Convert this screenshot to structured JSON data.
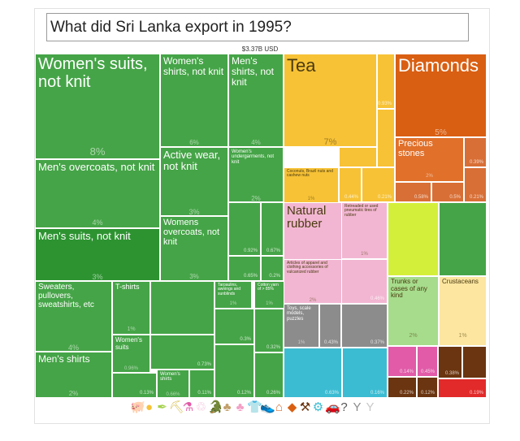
{
  "title": "What did Sri Lanka export in 1995?",
  "total": "$3.37B USD",
  "chart_data": {
    "type": "treemap",
    "title": "What did Sri Lanka export in 1995?",
    "total_label": "$3.37B USD",
    "cells": [
      {
        "label": "Women's suits, not knit",
        "pct": "8%",
        "share": 8,
        "sector": "Textiles",
        "color": "#45a447"
      },
      {
        "label": "Women's shirts, not knit",
        "pct": "6%",
        "share": 6,
        "sector": "Textiles",
        "color": "#45a447"
      },
      {
        "label": "Men's shirts, not knit",
        "pct": "4%",
        "share": 4,
        "sector": "Textiles",
        "color": "#45a447"
      },
      {
        "label": "Men's overcoats, not knit",
        "pct": "4%",
        "share": 4,
        "sector": "Textiles",
        "color": "#45a447"
      },
      {
        "label": "Men's suits, not knit",
        "pct": "3%",
        "share": 3,
        "sector": "Textiles",
        "color": "#2d9331"
      },
      {
        "label": "Active wear, not knit",
        "pct": "3%",
        "share": 3,
        "sector": "Textiles",
        "color": "#45a447"
      },
      {
        "label": "Women's undergarments, not knit",
        "pct": "2%",
        "share": 2,
        "sector": "Textiles",
        "color": "#45a447"
      },
      {
        "label": "Womens overcoats, not knit",
        "pct": "3%",
        "share": 3,
        "sector": "Textiles",
        "color": "#45a447"
      },
      {
        "label": "Sweaters, pullovers, sweatshirts, etc",
        "pct": "4%",
        "share": 4,
        "sector": "Textiles",
        "color": "#45a447"
      },
      {
        "label": "Men's shirts",
        "pct": "2%",
        "share": 2,
        "sector": "Textiles",
        "color": "#45a447"
      },
      {
        "label": "T-shirts",
        "pct": "1%",
        "share": 1,
        "sector": "Textiles",
        "color": "#45a447"
      },
      {
        "label": "Women's suits",
        "pct": "0.96%",
        "share": 0.96,
        "sector": "Textiles",
        "color": "#45a447"
      },
      {
        "label": "Women's shirts",
        "pct": "0.66%",
        "share": 0.66,
        "sector": "Textiles",
        "color": "#45a447"
      },
      {
        "label": "Tarpaulins, awnings and sunblinds",
        "pct": "1%",
        "share": 1,
        "sector": "Textiles",
        "color": "#45a447"
      },
      {
        "label": "Cotton yarn of > 85%",
        "pct": "1%",
        "share": 1,
        "sector": "Textiles",
        "color": "#45a447"
      },
      {
        "label": "Tea",
        "pct": "7%",
        "share": 7,
        "sector": "Vegetable Products",
        "color": "#f7c236"
      },
      {
        "label": "Coconuts, Brazil nuts and cashew nuts",
        "pct": "1%",
        "share": 1,
        "sector": "Vegetable Products",
        "color": "#f7c236"
      },
      {
        "label": "Diamonds",
        "pct": "5%",
        "share": 5,
        "sector": "Precious Metals",
        "color": "#d95f12"
      },
      {
        "label": "Precious stones",
        "pct": "2%",
        "share": 2,
        "sector": "Precious Metals",
        "color": "#e0702a"
      },
      {
        "label": "Natural rubber",
        "pct": "2%",
        "share": 2,
        "sector": "Plastics and Rubbers",
        "color": "#f2b6d2"
      },
      {
        "label": "Retreaded or used pneumatic tires of rubber",
        "pct": "1%",
        "share": 1,
        "sector": "Plastics and Rubbers",
        "color": "#f2b6d2"
      },
      {
        "label": "Articles of apparel and clothing accessories of vulcanized rubber",
        "pct": "2%",
        "share": 2,
        "sector": "Plastics and Rubbers",
        "color": "#f2b6d2"
      },
      {
        "label": "Toys, scale models, puzzles",
        "pct": "1%",
        "share": 1,
        "sector": "Miscellaneous",
        "color": "#8c8c8c"
      },
      {
        "label": "Trunks or cases of any kind",
        "pct": "2%",
        "share": 2,
        "sector": "Animal Hides",
        "color": "#a6dc8c"
      },
      {
        "label": "Crustaceans",
        "pct": "1%",
        "share": 1,
        "sector": "Animal Products",
        "color": "#fce6a0"
      }
    ],
    "small_value_labels": [
      "0.93%",
      "0.44%",
      "0.21%",
      "0.58%",
      "0.5%",
      "0.39%",
      "0.21%",
      "0.92%",
      "0.67%",
      "0.65%",
      "0.2%",
      "0.46%",
      "0.43%",
      "0.37%",
      "0.63%",
      "0.3%",
      "0.12%",
      "0.73%",
      "0.16%",
      "0.11%",
      "0.32%",
      "0.26%",
      "0.13%",
      "0.19%",
      "0.14%",
      "0.45%",
      "0.42%",
      "0.34%",
      "0.18%",
      "0.38%",
      "0.22%",
      "0.12%",
      "0.11%",
      "0.10%",
      "0.24%"
    ]
  },
  "legend": [
    "animal-products",
    "vegetable-products",
    "foodstuffs",
    "mineral-products",
    "chemical-products",
    "plastics-rubbers",
    "animal-hides",
    "wood-products",
    "paper-goods",
    "textiles",
    "footwear",
    "stone-glass",
    "precious-metals",
    "metals",
    "machines",
    "transportation",
    "instruments",
    "miscellaneous",
    "services"
  ],
  "legend_glyphs": [
    "🐖",
    "●",
    "✒",
    "⛏",
    "⚗",
    "♲",
    "🐊",
    "♣",
    "♣",
    "👕",
    "👟",
    "⌂",
    "◆",
    "⚒",
    "⚙",
    "🚗",
    "?",
    "Y",
    "Y"
  ],
  "colors": {
    "textiles": "#45a447",
    "textiles_dark": "#2d9331",
    "vegetable": "#f7c236",
    "precious": "#d95f12",
    "rubber": "#f2b6d2",
    "misc": "#8c8c8c",
    "machines": "#3cbcd2",
    "animal_hides": "#a6dc8c",
    "animal_products": "#fce6a0",
    "stone": "#d86f36",
    "chemicals": "#e15ba8",
    "metals": "#6a3510",
    "transport": "#e22a2a",
    "minerals": "#d4ef3a"
  }
}
